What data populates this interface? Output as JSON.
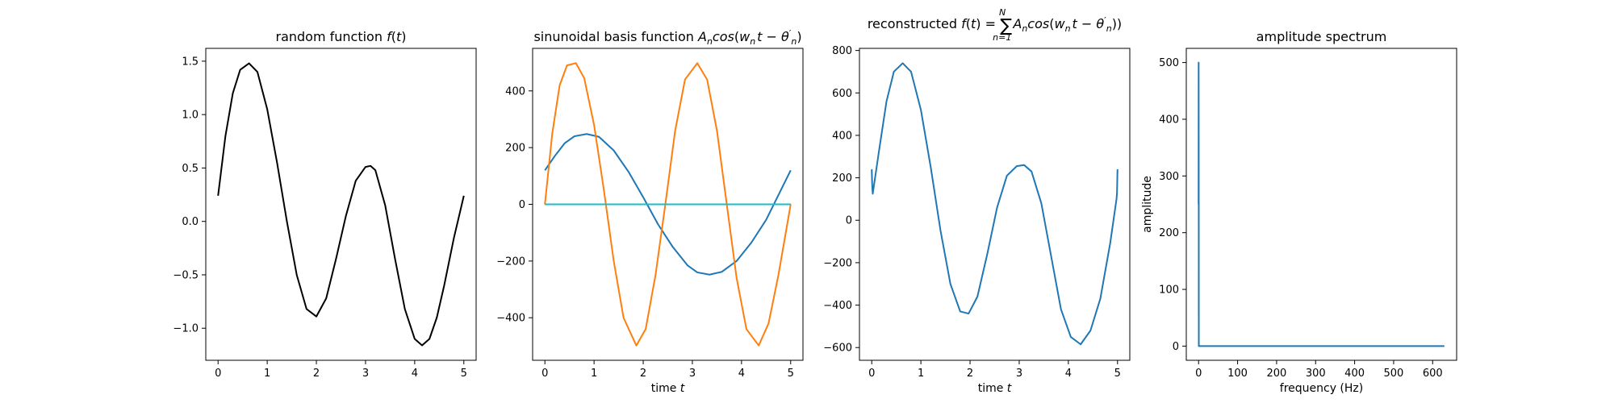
{
  "chart_data": [
    {
      "type": "line",
      "title": "random function f(t)",
      "title_parts": [
        "random function ",
        "f",
        "(",
        "t",
        ")"
      ],
      "xlabel": "",
      "ylabel": "",
      "xlim": [
        -0.25,
        5.25
      ],
      "ylim": [
        -1.3,
        1.62
      ],
      "xticks": [
        0,
        1,
        2,
        3,
        4,
        5
      ],
      "yticks": [
        -1.0,
        -0.5,
        0.0,
        0.5,
        1.0,
        1.5
      ],
      "ytick_labels": [
        "−1.0",
        "−0.5",
        "0.0",
        "0.5",
        "1.0",
        "1.5"
      ],
      "series": [
        {
          "color": "#000000",
          "x": [
            0,
            0.15,
            0.3,
            0.45,
            0.63,
            0.8,
            1.0,
            1.2,
            1.4,
            1.6,
            1.8,
            2.0,
            2.2,
            2.4,
            2.6,
            2.8,
            3.0,
            3.1,
            3.2,
            3.4,
            3.6,
            3.8,
            4.0,
            4.15,
            4.3,
            4.45,
            4.6,
            4.8,
            5.0
          ],
          "y": [
            0.24,
            0.8,
            1.2,
            1.42,
            1.48,
            1.4,
            1.05,
            0.55,
            0.0,
            -0.5,
            -0.82,
            -0.89,
            -0.72,
            -0.35,
            0.05,
            0.38,
            0.51,
            0.52,
            0.48,
            0.15,
            -0.35,
            -0.82,
            -1.1,
            -1.16,
            -1.1,
            -0.9,
            -0.6,
            -0.15,
            0.24
          ]
        }
      ]
    },
    {
      "type": "line",
      "title": "sinunoidal basis function A_n cos(w_n t − θ'_n)",
      "title_parts": [
        "sinunoidal basis function ",
        "A",
        "n",
        "cos",
        "(",
        "w",
        "n",
        "t",
        " − ",
        "θ",
        "′",
        "n",
        ")"
      ],
      "xlabel": "time t",
      "xlabel_parts": [
        "time ",
        "t"
      ],
      "ylabel": "",
      "xlim": [
        -0.25,
        5.25
      ],
      "ylim": [
        -550,
        550
      ],
      "xticks": [
        0,
        1,
        2,
        3,
        4,
        5
      ],
      "yticks": [
        -400,
        -200,
        0,
        200,
        400
      ],
      "ytick_labels": [
        "−400",
        "−200",
        "0",
        "200",
        "400"
      ],
      "series": [
        {
          "color": "#1f77b4",
          "x": [
            0,
            0.2,
            0.4,
            0.6,
            0.85,
            1.1,
            1.4,
            1.7,
            2.0,
            2.3,
            2.6,
            2.9,
            3.1,
            3.35,
            3.6,
            3.9,
            4.2,
            4.5,
            4.8,
            5.0
          ],
          "y": [
            120,
            170,
            215,
            240,
            248,
            238,
            190,
            115,
            25,
            -70,
            -150,
            -215,
            -240,
            -248,
            -238,
            -200,
            -135,
            -55,
            50,
            120
          ]
        },
        {
          "color": "#ff7f0e",
          "x": [
            0,
            0.15,
            0.3,
            0.45,
            0.63,
            0.8,
            1.0,
            1.2,
            1.4,
            1.6,
            1.86,
            2.05,
            2.25,
            2.45,
            2.65,
            2.85,
            3.1,
            3.3,
            3.5,
            3.7,
            3.9,
            4.1,
            4.35,
            4.55,
            4.75,
            4.9,
            5.0
          ],
          "y": [
            0,
            250,
            420,
            490,
            498,
            445,
            280,
            50,
            -200,
            -400,
            -498,
            -440,
            -250,
            0,
            260,
            440,
            498,
            440,
            260,
            0,
            -260,
            -440,
            -498,
            -420,
            -250,
            -100,
            0
          ]
        },
        {
          "color": "#2ca02c",
          "x": [
            0,
            5
          ],
          "y": [
            0,
            0
          ]
        },
        {
          "color": "#17becf",
          "x": [
            0,
            5
          ],
          "y": [
            0,
            0
          ]
        }
      ]
    },
    {
      "type": "line",
      "title": "reconstructed f(t) = Σ_{n=1}^{N} A_n cos(w_n t − θ'_n))",
      "title_parts": [
        "reconstructed ",
        "f",
        "(",
        "t",
        ") = ",
        "∑",
        "N",
        "n=1",
        "A",
        "n",
        "cos",
        "(",
        "w",
        "n",
        "t",
        " − ",
        "θ",
        "′",
        "n",
        "))"
      ],
      "xlabel": "time t",
      "xlabel_parts": [
        "time ",
        "t"
      ],
      "ylabel": "",
      "xlim": [
        -0.25,
        5.25
      ],
      "ylim": [
        -660,
        810
      ],
      "xticks": [
        0,
        1,
        2,
        3,
        4,
        5
      ],
      "yticks": [
        -600,
        -400,
        -200,
        0,
        200,
        400,
        600,
        800
      ],
      "ytick_labels": [
        "−600",
        "−400",
        "−200",
        "0",
        "200",
        "400",
        "600",
        "800"
      ],
      "series": [
        {
          "color": "#1f77b4",
          "x": [
            0,
            0.01,
            0.02,
            0.15,
            0.3,
            0.45,
            0.63,
            0.8,
            1.0,
            1.2,
            1.4,
            1.6,
            1.8,
            1.97,
            2.15,
            2.35,
            2.55,
            2.75,
            2.95,
            3.1,
            3.25,
            3.45,
            3.65,
            3.85,
            4.05,
            4.25,
            4.45,
            4.65,
            4.85,
            4.98,
            4.99,
            5.0
          ],
          "y": [
            240,
            160,
            125,
            330,
            560,
            700,
            740,
            700,
            520,
            250,
            -50,
            -300,
            -430,
            -440,
            -360,
            -160,
            60,
            210,
            255,
            260,
            230,
            80,
            -170,
            -420,
            -550,
            -585,
            -520,
            -370,
            -110,
            100,
            130,
            240
          ]
        }
      ]
    },
    {
      "type": "line",
      "title": "amplitude spectrum",
      "xlabel": "frequency (Hz)",
      "ylabel": "amplitude",
      "xlim": [
        -31.5,
        661.5
      ],
      "ylim": [
        -25,
        525
      ],
      "xticks": [
        0,
        100,
        200,
        300,
        400,
        500,
        600
      ],
      "yticks": [
        0,
        100,
        200,
        300,
        400,
        500
      ],
      "series": [
        {
          "color": "#1f77b4",
          "x": [
            0,
            0.2,
            0.4,
            0.6,
            0.8,
            1.0,
            1.2,
            1.4,
            1.6,
            3,
            10,
            100,
            300,
            500,
            630
          ],
          "y": [
            250,
            500,
            350,
            0,
            0,
            0,
            0,
            0,
            0,
            0,
            0,
            0,
            0,
            0,
            0
          ]
        }
      ]
    }
  ]
}
